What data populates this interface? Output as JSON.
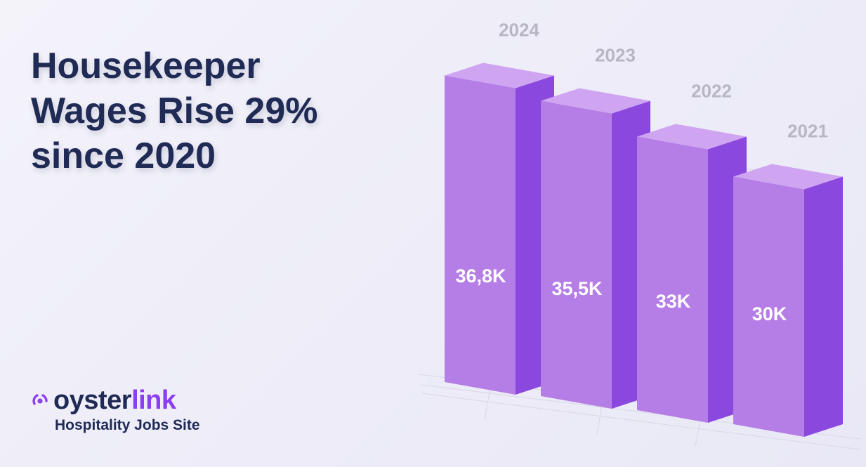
{
  "title": "Housekeeper\nWages Rise 29%\nsince 2020",
  "brand": {
    "name_part1": "oyster",
    "name_part2": "link",
    "tagline": "Hospitality Jobs Site",
    "icon": "oysterlink-logo-icon"
  },
  "colors": {
    "title": "#1f2a55",
    "bar_front": "#b57ee6",
    "bar_side": "#8a48de",
    "bar_top": "#cfa5f2",
    "value_label": "#ffffff",
    "year_label": "#b8b6c2",
    "brand_accent": "#8a3ff0"
  },
  "chart_data": {
    "type": "bar",
    "categories": [
      "2024",
      "2023",
      "2022",
      "2021"
    ],
    "values": [
      36800,
      35500,
      33000,
      30000
    ],
    "data_labels": [
      "36,8K",
      "35,5K",
      "33K",
      "30K"
    ],
    "title": "Housekeeper Wages Rise 29% since 2020",
    "xlabel": "",
    "ylabel": "",
    "style": "3d",
    "grid": true,
    "legend": "none"
  }
}
